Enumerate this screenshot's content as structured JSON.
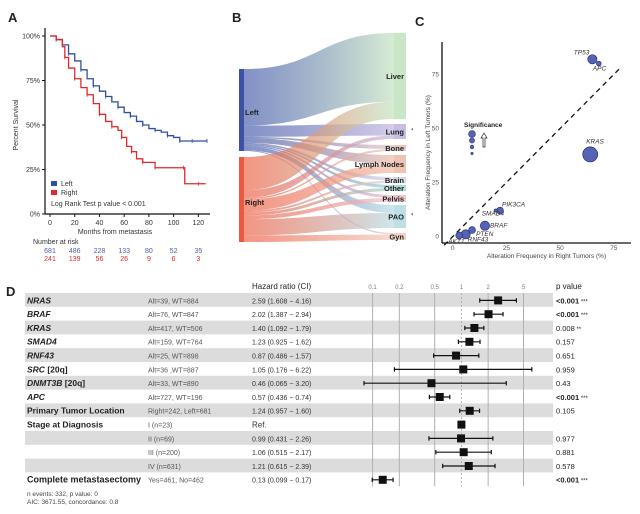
{
  "panels": {
    "a": "A",
    "b": "B",
    "c": "C",
    "d": "D"
  },
  "chart_data": [
    {
      "panel": "A",
      "type": "line",
      "subtype": "kaplan-meier",
      "title": "",
      "xlabel": "Months from metastasis",
      "ylabel": "Percent Survival",
      "xlim": [
        0,
        127
      ],
      "ylim": [
        0,
        100
      ],
      "xticks": [
        0,
        20,
        40,
        60,
        80,
        100,
        120
      ],
      "yticks": [
        0,
        25,
        50,
        75,
        100
      ],
      "ytick_labels": [
        "0%",
        "25%",
        "50%",
        "75%",
        "100%"
      ],
      "legend": {
        "position": "bottom-left",
        "entries": [
          "Left",
          "Right"
        ]
      },
      "annotation": "Log Rank Test p value < 0.001",
      "series": [
        {
          "name": "Left",
          "color": "#2f4fa2",
          "x": [
            0,
            5,
            10,
            15,
            20,
            25,
            30,
            35,
            40,
            45,
            50,
            55,
            60,
            65,
            70,
            75,
            80,
            85,
            90,
            95,
            100,
            105,
            110,
            115,
            120,
            127
          ],
          "y": [
            100,
            98,
            95,
            90,
            86,
            81,
            76,
            72,
            69,
            66,
            63,
            60,
            57,
            55,
            52,
            50,
            48,
            47,
            46,
            44,
            43,
            41,
            41,
            41,
            41,
            41
          ]
        },
        {
          "name": "Right",
          "color": "#e0292b",
          "x": [
            0,
            5,
            10,
            12,
            15,
            20,
            25,
            30,
            35,
            40,
            45,
            50,
            55,
            58,
            62,
            66,
            70,
            75,
            80,
            85,
            100,
            108,
            109,
            120,
            126
          ],
          "y": [
            100,
            98,
            94,
            88,
            82,
            76,
            71,
            67,
            62,
            56,
            52,
            49,
            47,
            43,
            38,
            35,
            31,
            29,
            29,
            26,
            26,
            26,
            17,
            17,
            17
          ]
        }
      ],
      "risk_table": {
        "title": "Number at risk",
        "times": [
          0,
          20,
          40,
          60,
          80,
          100,
          120
        ],
        "rows": [
          {
            "name": "Left",
            "color": "#4a5fa8",
            "values": [
              "681",
              "486",
              "228",
              "133",
              "80",
              "52",
              "35"
            ]
          },
          {
            "name": "Right",
            "color": "#e0292b",
            "values": [
              "241",
              "139",
              "56",
              "26",
              "9",
              "6",
              "3"
            ]
          }
        ]
      }
    },
    {
      "panel": "B",
      "type": "sankey",
      "sources": [
        {
          "name": "Left",
          "color": "#3d52a6",
          "value": 681
        },
        {
          "name": "Right",
          "color": "#ec5a3e",
          "value": 242
        }
      ],
      "targets": [
        {
          "name": "Liver",
          "color": "#c9e6c6",
          "star": false
        },
        {
          "name": "Lung",
          "color": "#c8bde2",
          "star": true
        },
        {
          "name": "Bone",
          "color": "#e7c9c4",
          "star": false
        },
        {
          "name": "Lymph Nodes",
          "color": "#efc3b1",
          "star": false
        },
        {
          "name": "Brain",
          "color": "#d9dbe3",
          "star": false
        },
        {
          "name": "Other",
          "color": "#a9d9d9",
          "star": false
        },
        {
          "name": "Pelvis",
          "color": "#f0c5cf",
          "star": false
        },
        {
          "name": "PAO",
          "color": "#bedfe6",
          "star": true
        },
        {
          "name": "Gyn",
          "color": "#f2d2c3",
          "star": false
        }
      ],
      "links": [
        {
          "source": "Left",
          "target": "Liver",
          "value": 280
        },
        {
          "source": "Left",
          "target": "Lung",
          "value": 55
        },
        {
          "source": "Left",
          "target": "Bone",
          "value": 6
        },
        {
          "source": "Left",
          "target": "Lymph Nodes",
          "value": 24
        },
        {
          "source": "Left",
          "target": "Brain",
          "value": 6
        },
        {
          "source": "Left",
          "target": "Other",
          "value": 6
        },
        {
          "source": "Left",
          "target": "Pelvis",
          "value": 6
        },
        {
          "source": "Left",
          "target": "PAO",
          "value": 18
        },
        {
          "source": "Left",
          "target": "Gyn",
          "value": 4
        },
        {
          "source": "Right",
          "target": "Liver",
          "value": 70
        },
        {
          "source": "Right",
          "target": "Lung",
          "value": 16
        },
        {
          "source": "Right",
          "target": "Bone",
          "value": 3
        },
        {
          "source": "Right",
          "target": "Lymph Nodes",
          "value": 24
        },
        {
          "source": "Right",
          "target": "Brain",
          "value": 4
        },
        {
          "source": "Right",
          "target": "Other",
          "value": 6
        },
        {
          "source": "Right",
          "target": "Pelvis",
          "value": 8
        },
        {
          "source": "Right",
          "target": "PAO",
          "value": 34
        },
        {
          "source": "Right",
          "target": "Gyn",
          "value": 14
        }
      ]
    },
    {
      "panel": "C",
      "type": "scatter",
      "xlabel": "Alteration Frequency in Right Tumors (%)",
      "ylabel": "Alteration Frequency in Left Tumors (%)",
      "xlim": [
        -5,
        83
      ],
      "ylim": [
        -3,
        90
      ],
      "xticks": [
        0,
        25,
        50,
        75
      ],
      "yticks": [
        0,
        25,
        50,
        75
      ],
      "reference_line": "y = x (dashed)",
      "point_color": "#5563b5",
      "size_legend": {
        "title": "Significance",
        "arrow": "up",
        "levels": 4
      },
      "points": [
        {
          "label": "TP53",
          "x": 65,
          "y": 82,
          "size": 3
        },
        {
          "label": "APC",
          "x": 68,
          "y": 80,
          "size": 1
        },
        {
          "label": "KRAS",
          "x": 64,
          "y": 38,
          "size": 4
        },
        {
          "label": "PIK3CA",
          "x": 22,
          "y": 12,
          "size": 2
        },
        {
          "label": "SMAD4",
          "x": 20,
          "y": 12,
          "size": 0
        },
        {
          "label": "BRAF",
          "x": 15,
          "y": 5,
          "size": 3
        },
        {
          "label": "PTEN",
          "x": 9,
          "y": 3,
          "size": 2
        },
        {
          "label": "RNF43",
          "x": 6,
          "y": 1,
          "size": 3
        },
        {
          "label": "AKT1",
          "x": 3,
          "y": 0.5,
          "size": 2
        }
      ]
    },
    {
      "panel": "D",
      "type": "table",
      "subtype": "forest-plot",
      "columns": [
        "",
        "",
        "Hazard ratio (CI)",
        "",
        "p value"
      ],
      "xaxis": {
        "scale": "log",
        "ticks": [
          0.1,
          0.2,
          0.5,
          1,
          2,
          5
        ],
        "tick_labels": [
          "0.1",
          "0.2",
          "0.5",
          "1",
          "2",
          "5"
        ],
        "xlim": [
          0.08,
          6.2
        ],
        "reference": 1
      },
      "rows": [
        {
          "var": "NRAS",
          "italic": true,
          "level": "Alt=39, WT=884",
          "hr_text": "2.59",
          "ci_text": "(1.608 − 4.16)",
          "hr": 2.59,
          "lo": 1.608,
          "hi": 4.16,
          "p": "<0.001",
          "stars": "***",
          "bold_p": true,
          "shade": true
        },
        {
          "var": "BRAF",
          "italic": true,
          "level": "Alt=76, WT=847",
          "hr_text": "2.02",
          "ci_text": "(1.387 − 2.94)",
          "hr": 2.02,
          "lo": 1.387,
          "hi": 2.94,
          "p": "<0.001",
          "stars": "***",
          "bold_p": true,
          "shade": false
        },
        {
          "var": "KRAS",
          "italic": true,
          "level": "Alt=417, WT=506",
          "hr_text": "1.40",
          "ci_text": "(1.092 − 1.79)",
          "hr": 1.4,
          "lo": 1.092,
          "hi": 1.79,
          "p": "0.008",
          "stars": "**",
          "bold_p": false,
          "shade": true
        },
        {
          "var": "SMAD4",
          "italic": true,
          "level": "Alt=159, WT=764",
          "hr_text": "1.23",
          "ci_text": "(0.925 − 1.62)",
          "hr": 1.23,
          "lo": 0.925,
          "hi": 1.62,
          "p": "0.157",
          "stars": "",
          "bold_p": false,
          "shade": false
        },
        {
          "var": "RNF43",
          "italic": true,
          "level": "Alt=25, WT=898",
          "hr_text": "0.87",
          "ci_text": "(0.486 − 1.57)",
          "hr": 0.87,
          "lo": 0.486,
          "hi": 1.57,
          "p": "0.651",
          "stars": "",
          "bold_p": false,
          "shade": true
        },
        {
          "var": "SRC",
          "suffix": " [20q]",
          "italic": true,
          "level": "Alt=36 ,WT=887",
          "hr_text": "1.05",
          "ci_text": "(0.176 − 6.22)",
          "hr": 1.05,
          "lo": 0.176,
          "hi": 6.22,
          "p": "0.959",
          "stars": "",
          "bold_p": false,
          "shade": false
        },
        {
          "var": "DNMT3B",
          "suffix": " [20q]",
          "italic": true,
          "level": "Alt=33, WT=890",
          "hr_text": "0.46",
          "ci_text": "(0.065 − 3.20)",
          "hr": 0.46,
          "lo": 0.065,
          "hi": 3.2,
          "p": "0.43",
          "stars": "",
          "bold_p": false,
          "shade": true
        },
        {
          "var": "APC",
          "italic": true,
          "level": "Alt=727, WT=196",
          "hr_text": "0.57",
          "ci_text": "(0.436 − 0.74)",
          "hr": 0.57,
          "lo": 0.436,
          "hi": 0.74,
          "p": "<0.001",
          "stars": "***",
          "bold_p": true,
          "shade": false
        },
        {
          "var": "Primary Tumor Location",
          "italic": false,
          "level": "Right=242, Left=681",
          "hr_text": "1.24",
          "ci_text": "(0.957 − 1.60)",
          "hr": 1.24,
          "lo": 0.957,
          "hi": 1.6,
          "p": "0.105",
          "stars": "",
          "bold_p": false,
          "shade": true
        },
        {
          "var": "Stage at Diagnosis",
          "italic": false,
          "level": "I (n=23)",
          "hr_text": "Ref.",
          "ci_text": "",
          "hr": 1.0,
          "lo": null,
          "hi": null,
          "p": "",
          "stars": "",
          "bold_p": false,
          "shade": false
        },
        {
          "var": "",
          "italic": false,
          "level": "II (n=69)",
          "hr_text": "0.99",
          "ci_text": "(0.431 − 2.26)",
          "hr": 0.99,
          "lo": 0.431,
          "hi": 2.26,
          "p": "0.977",
          "stars": "",
          "bold_p": false,
          "shade": true
        },
        {
          "var": "",
          "italic": false,
          "level": "III (n=200)",
          "hr_text": "1.06",
          "ci_text": "(0.515 − 2.17)",
          "hr": 1.06,
          "lo": 0.515,
          "hi": 2.17,
          "p": "0.881",
          "stars": "",
          "bold_p": false,
          "shade": false
        },
        {
          "var": "",
          "italic": false,
          "level": "IV (n=631)",
          "hr_text": "1.21",
          "ci_text": "(0.615 − 2.39)",
          "hr": 1.21,
          "lo": 0.615,
          "hi": 2.39,
          "p": "0.578",
          "stars": "",
          "bold_p": false,
          "shade": true
        },
        {
          "var": "Complete metastasectomy",
          "italic": false,
          "level": "Yes=461, No=462",
          "hr_text": "0.13",
          "ci_text": "(0.099 − 0.17)",
          "hr": 0.13,
          "lo": 0.099,
          "hi": 0.17,
          "p": "<0.001",
          "stars": "***",
          "bold_p": true,
          "shade": false
        }
      ],
      "footer": [
        "n events: 332,  p value: 0",
        "AIC: 3671.55, concordance: 0.8"
      ]
    }
  ]
}
